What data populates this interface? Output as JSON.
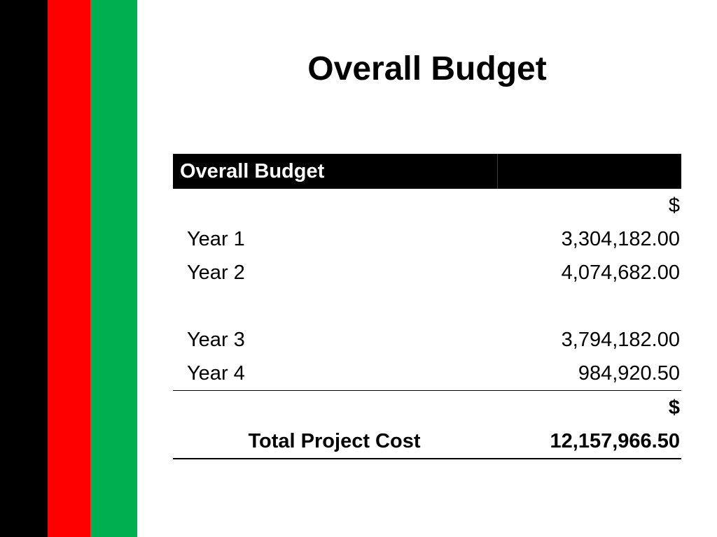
{
  "slide": {
    "title": "Overall Budget",
    "accent_colors": [
      "#000000",
      "#ff0000",
      "#00b050"
    ]
  },
  "table": {
    "header_label": "Overall Budget",
    "header_value": "",
    "currency_symbol": "$",
    "rows": [
      {
        "label": "Year 1",
        "value": "3,304,182.00"
      },
      {
        "label": "Year 2",
        "value": "4,074,682.00"
      },
      {
        "label": "Year 3",
        "value": "3,794,182.00"
      },
      {
        "label": "Year 4",
        "value": "984,920.50"
      }
    ],
    "total_currency_symbol": "$",
    "total_label": "Total Project Cost",
    "total_value": "12,157,966.50"
  }
}
